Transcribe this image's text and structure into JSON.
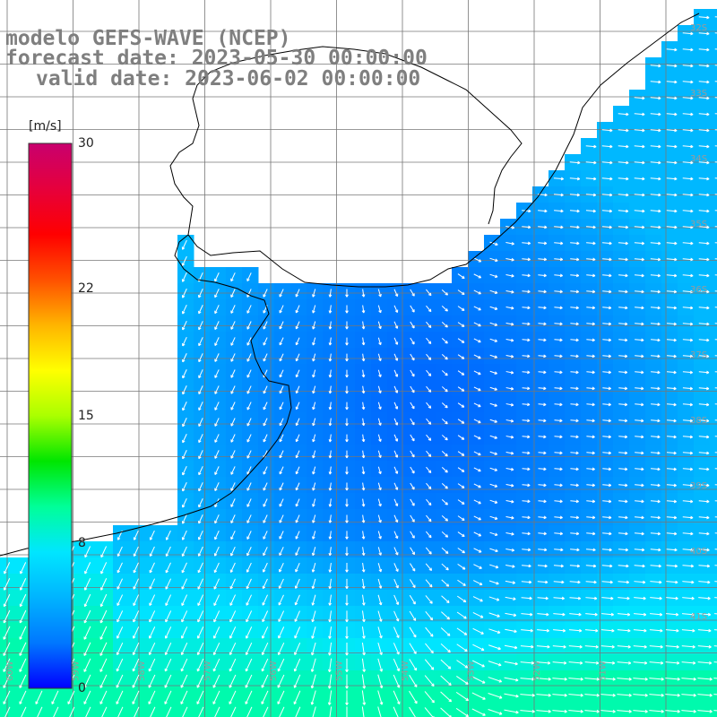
{
  "title": {
    "line1": "modelo GEFS-WAVE (NCEP)",
    "line2": "forecast date: 2023-05-30 00:00:00",
    "line3": "valid date: 2023-06-02 00:00:00"
  },
  "colorbar": {
    "unit": "[m/s]",
    "ticks": [
      "30",
      "22",
      "15",
      "8",
      "0"
    ],
    "tick_values": [
      30,
      22,
      15,
      8,
      0
    ],
    "colors": [
      "#0000ff",
      "#0077ff",
      "#00b4ff",
      "#00e6ff",
      "#00ff99",
      "#00e600",
      "#aaff00",
      "#ffff00",
      "#ffb400",
      "#ff5000",
      "#ff0000",
      "#e6003c",
      "#c8006e"
    ]
  },
  "grid": {
    "lat_labels": [
      "32S",
      "33S",
      "34S",
      "35S",
      "36S",
      "37S",
      "38S",
      "39S",
      "40S",
      "41S"
    ],
    "lon_labels": [
      "60W",
      "59W",
      "58W",
      "57W",
      "56W",
      "55W",
      "54W",
      "53W",
      "52W",
      "51W"
    ]
  },
  "field": {
    "variable": "wind speed",
    "unit": "m/s",
    "range": [
      0,
      30
    ]
  }
}
